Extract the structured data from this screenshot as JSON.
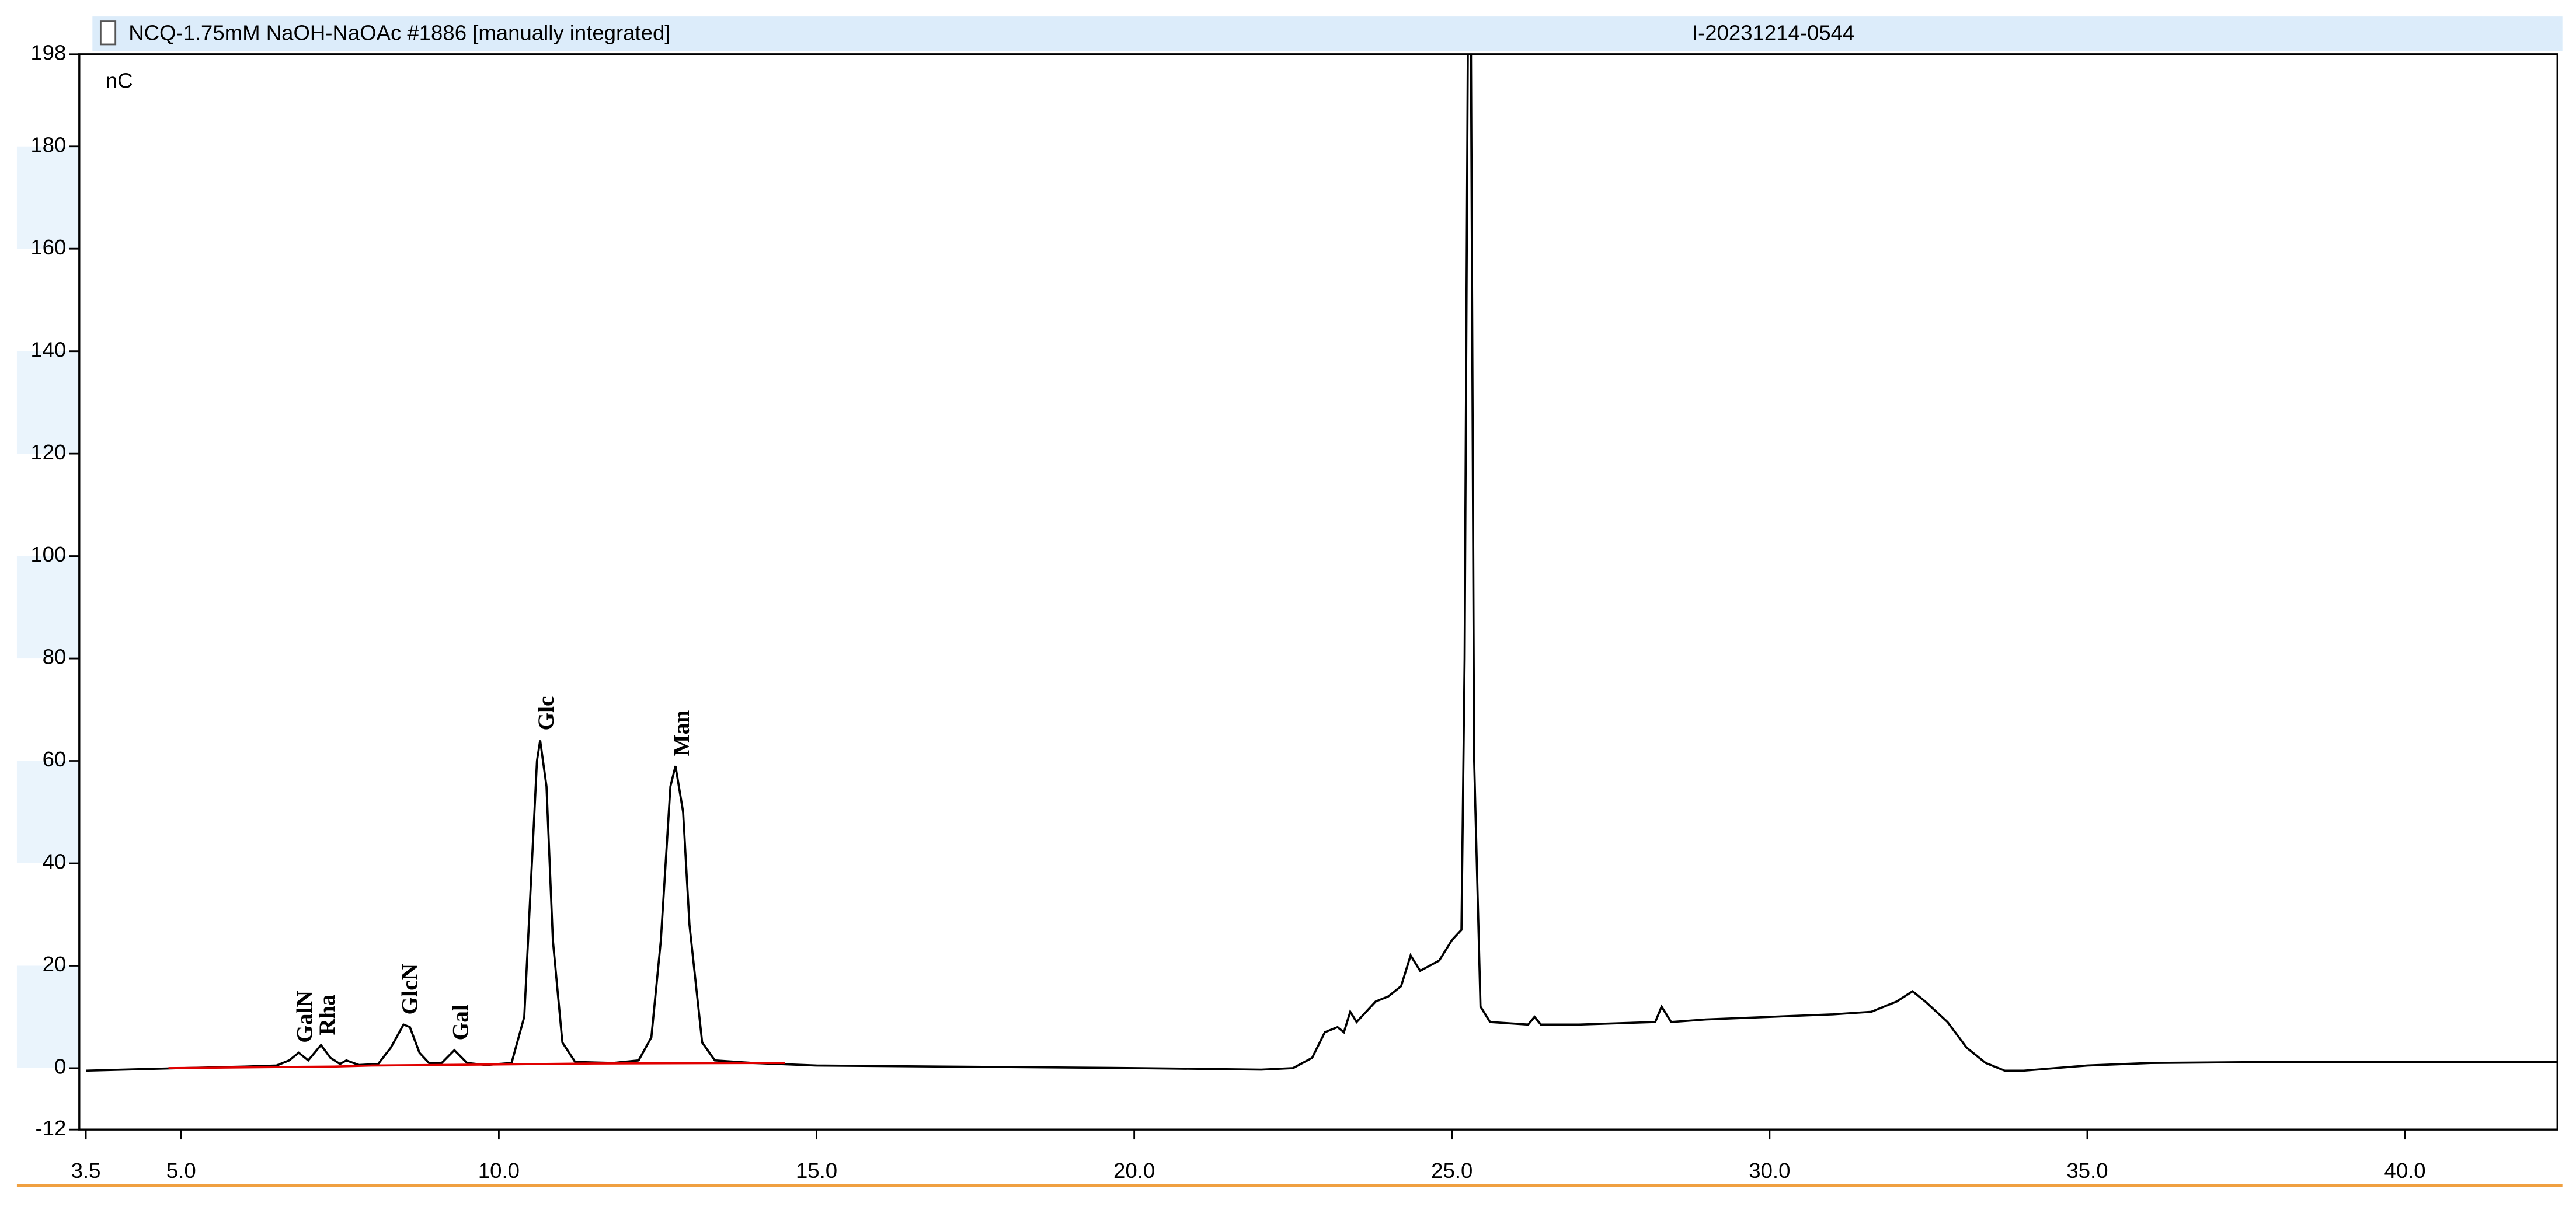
{
  "chart_data": {
    "type": "line",
    "title": "NCQ-1.75mM NaOH-NaOAc #1886 [manually integrated]",
    "sample_id": "I-20231214-0544",
    "y_label": "nC",
    "xlim": [
      3.5,
      42.4
    ],
    "ylim": [
      -12,
      198
    ],
    "xticks": [
      3.5,
      {
        "value": 5,
        "label": "5.0"
      },
      {
        "value": 10,
        "label": "10.0"
      },
      {
        "value": 15,
        "label": "15.0"
      },
      {
        "value": 20,
        "label": "20.0"
      },
      {
        "value": 25,
        "label": "25.0"
      },
      {
        "value": 30,
        "label": "30.0"
      },
      {
        "value": 35,
        "label": "35.0"
      },
      {
        "value": 40,
        "label": "40.0"
      }
    ],
    "yticks": [
      -12,
      0,
      20,
      40,
      60,
      80,
      100,
      120,
      140,
      160,
      180,
      198
    ],
    "series": [
      {
        "color": "#000000",
        "x": [
          3.5,
          5,
          6,
          6.5,
          6.7,
          6.85,
          7.0,
          7.1,
          7.2,
          7.35,
          7.5,
          7.6,
          7.8,
          8.1,
          8.3,
          8.5,
          8.6,
          8.75,
          8.9,
          9.1,
          9.3,
          9.5,
          9.8,
          10.2,
          10.4,
          10.5,
          10.6,
          10.65,
          10.75,
          10.85,
          11.0,
          11.2,
          11.8,
          12.2,
          12.4,
          12.55,
          12.7,
          12.78,
          12.9,
          13.0,
          13.2,
          13.4,
          14,
          15,
          17,
          20,
          22,
          22.5,
          22.8,
          23.0,
          23.2,
          23.3,
          23.4,
          23.5,
          23.8,
          24.0,
          24.2,
          24.35,
          24.5,
          24.8,
          25.0,
          25.15,
          25.2,
          25.25,
          25.3,
          25.35,
          25.45,
          25.6,
          26.2,
          26.3,
          26.4,
          27,
          28.2,
          28.3,
          28.45,
          29,
          30,
          31,
          31.6,
          32,
          32.25,
          32.45,
          32.8,
          33.1,
          33.4,
          33.7,
          34,
          35,
          36,
          38,
          40,
          42.4
        ],
        "values": [
          -0.5,
          0,
          0.3,
          0.5,
          1.5,
          3,
          1.5,
          3,
          4.5,
          2,
          0.8,
          1.5,
          0.6,
          0.8,
          4,
          8.5,
          8,
          3,
          1,
          1,
          3.5,
          1,
          0.6,
          1,
          10,
          35,
          60,
          64,
          55,
          25,
          5,
          1.2,
          1,
          1.5,
          6,
          25,
          55,
          59,
          50,
          28,
          5,
          1.5,
          1,
          0.5,
          0.3,
          0,
          -0.3,
          0,
          2,
          7,
          8,
          7,
          11,
          9,
          13,
          14,
          16,
          22,
          19,
          21,
          25,
          27,
          80,
          198,
          198,
          60,
          12,
          9,
          8.5,
          10,
          8.5,
          8.5,
          9,
          12,
          9,
          9.5,
          10,
          10.5,
          11,
          13,
          15,
          13,
          9,
          4,
          1,
          -0.5,
          -0.5,
          0.5,
          1,
          1.2,
          1.2,
          1.2
        ]
      },
      {
        "color": "#e00000",
        "x": [
          4.8,
          7.4,
          8.0,
          9.9,
          11.5,
          14.5
        ],
        "values": [
          0,
          0.3,
          0.5,
          0.7,
          0.9,
          1
        ]
      }
    ],
    "annotations": [
      {
        "text": "GalN",
        "x": 6.85,
        "y": 3
      },
      {
        "text": "Rha",
        "x": 7.2,
        "y": 4.5
      },
      {
        "text": "GlcN",
        "x": 8.5,
        "y": 8.5
      },
      {
        "text": "Gal",
        "x": 9.3,
        "y": 3.5
      },
      {
        "text": "Glc",
        "x": 10.65,
        "y": 64
      },
      {
        "text": "Man",
        "x": 12.78,
        "y": 59
      }
    ]
  }
}
